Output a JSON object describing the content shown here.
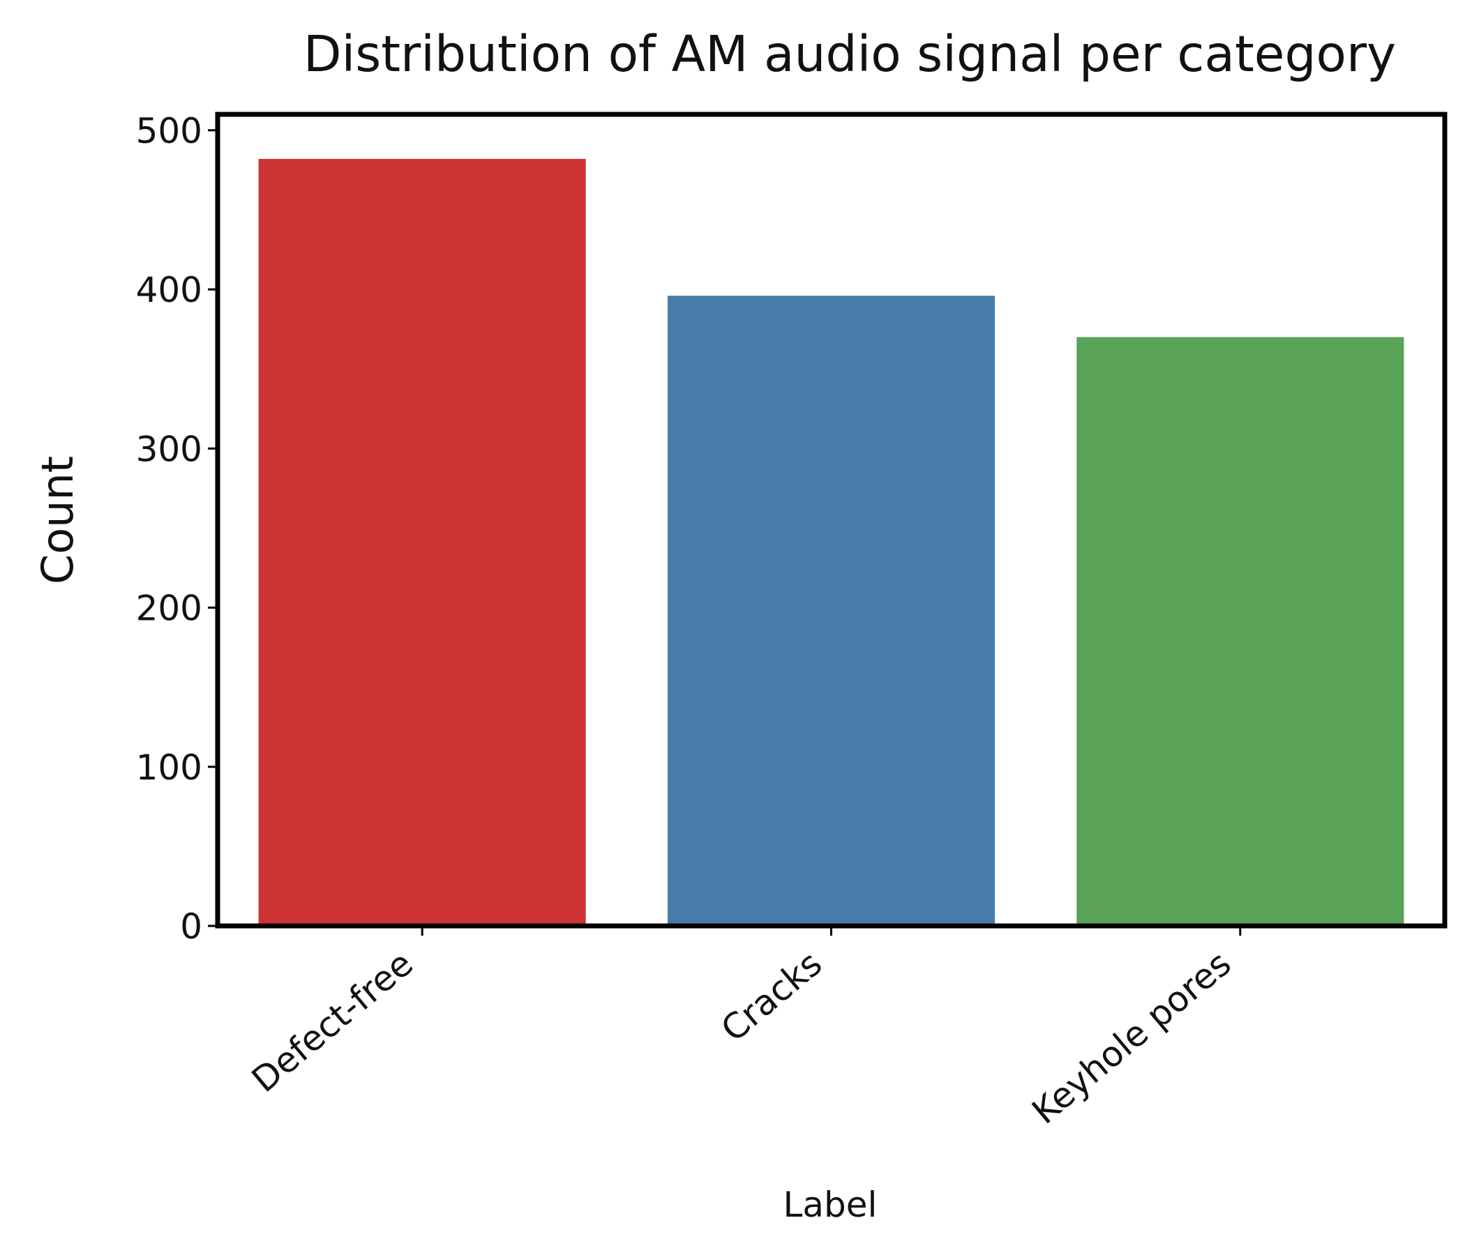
{
  "chart_data": {
    "type": "bar",
    "title": "Distribution of AM audio signal per category",
    "xlabel": "Label",
    "ylabel": "Count",
    "categories": [
      "Defect-free",
      "Cracks",
      "Keyhole pores"
    ],
    "values": [
      482,
      396,
      370
    ],
    "colors": [
      "#cb3335",
      "#477ca8",
      "#59a257"
    ],
    "ylim": [
      0,
      510
    ],
    "yticks": [
      0,
      100,
      200,
      300,
      400,
      500
    ],
    "ytick_labels": [
      "0",
      "100",
      "200",
      "300",
      "400",
      "500"
    ],
    "xtick_rotation_deg": 40,
    "grid": false,
    "legend": "none"
  }
}
